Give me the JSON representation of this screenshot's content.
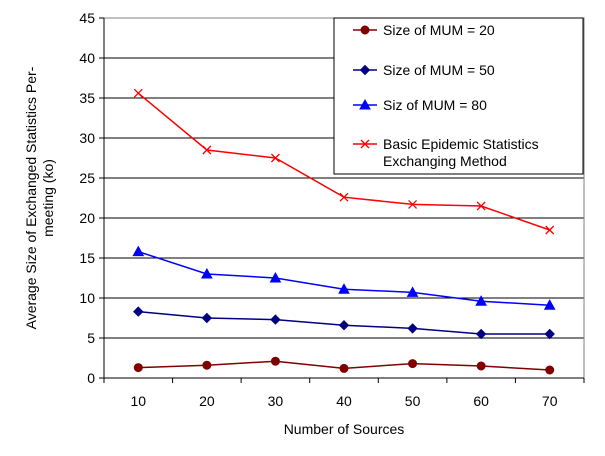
{
  "chart_data": {
    "type": "line",
    "title": "",
    "xlabel": "Number of Sources",
    "ylabel_lines": [
      "Average Size of Exchanged Statistics Per-",
      "meeting (ko)"
    ],
    "x": [
      10,
      20,
      30,
      40,
      50,
      60,
      70
    ],
    "ylim": [
      0,
      45
    ],
    "yticks": [
      0,
      5,
      10,
      15,
      20,
      25,
      30,
      35,
      40,
      45
    ],
    "grid": true,
    "legend_position": "top-right",
    "series": [
      {
        "name": "Size of MUM = 20",
        "label_lines": [
          "Size of MUM = 20"
        ],
        "color": "#800000",
        "marker": "circle",
        "values": [
          1.3,
          1.6,
          2.1,
          1.2,
          1.8,
          1.5,
          1.0
        ]
      },
      {
        "name": "Size of MUM = 50",
        "label_lines": [
          "Size of MUM = 50"
        ],
        "color": "#000080",
        "marker": "diamond",
        "values": [
          8.3,
          7.5,
          7.3,
          6.6,
          6.2,
          5.5,
          5.5
        ]
      },
      {
        "name": "Siz of MUM = 80",
        "label_lines": [
          "Siz of MUM = 80"
        ],
        "color": "#0000ff",
        "marker": "triangle",
        "values": [
          15.8,
          13.0,
          12.5,
          11.1,
          10.7,
          9.6,
          9.1
        ]
      },
      {
        "name": "Basic Epidemic Statistics Exchanging Method",
        "label_lines": [
          "Basic Epidemic Statistics",
          "Exchanging Method"
        ],
        "color": "#ff0000",
        "marker": "x",
        "values": [
          35.6,
          28.5,
          27.5,
          22.6,
          21.7,
          21.5,
          18.5
        ]
      }
    ]
  }
}
